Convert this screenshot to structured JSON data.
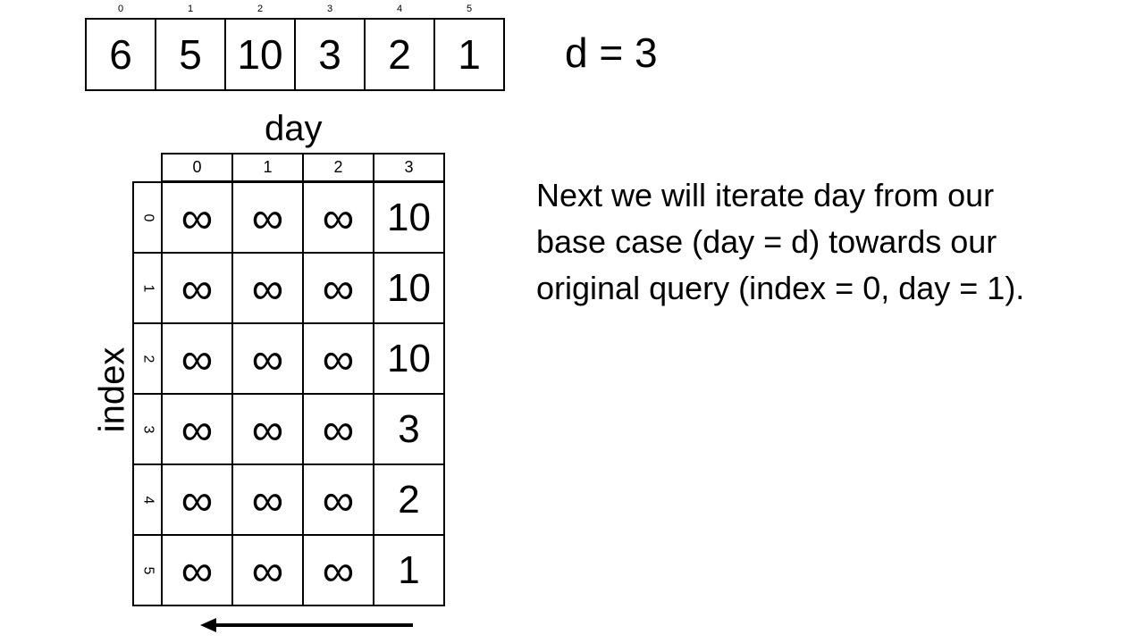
{
  "array": {
    "indices": [
      "0",
      "1",
      "2",
      "3",
      "4",
      "5"
    ],
    "values": [
      "6",
      "5",
      "10",
      "3",
      "2",
      "1"
    ]
  },
  "d_label": "d = 3",
  "table": {
    "col_title": "day",
    "row_title": "index",
    "col_headers": [
      "0",
      "1",
      "2",
      "3"
    ],
    "row_headers": [
      "0",
      "1",
      "2",
      "3",
      "4",
      "5"
    ],
    "rows": [
      [
        "∞",
        "∞",
        "∞",
        "10"
      ],
      [
        "∞",
        "∞",
        "∞",
        "10"
      ],
      [
        "∞",
        "∞",
        "∞",
        "10"
      ],
      [
        "∞",
        "∞",
        "∞",
        "3"
      ],
      [
        "∞",
        "∞",
        "∞",
        "2"
      ],
      [
        "∞",
        "∞",
        "∞",
        "1"
      ]
    ]
  },
  "description": {
    "lines": [
      "Next we will iterate day from our",
      "base case (day = d) towards our",
      "original query (index = 0, day = 1)."
    ]
  }
}
